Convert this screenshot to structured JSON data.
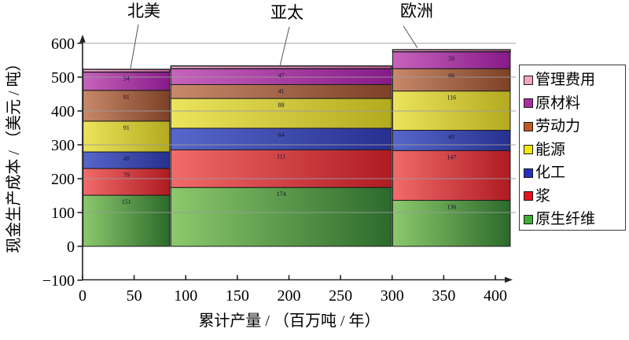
{
  "chart_data": {
    "type": "bar",
    "subtype": "variable-width-stacked-cost-curve",
    "title": "",
    "xlabel": "累计产量 / （百万吨 / 年）",
    "ylabel": "现金生产成本 / （美元 / 吨）",
    "xlim": [
      0,
      420
    ],
    "ylim": [
      -100,
      600
    ],
    "x_ticks": [
      0,
      50,
      100,
      150,
      200,
      250,
      300,
      350,
      400
    ],
    "y_ticks": [
      -100,
      0,
      100,
      200,
      300,
      400,
      500,
      600
    ],
    "grid": "horizontal-gray-over-bars",
    "legend_position": "right-outside",
    "categories": [
      "北美",
      "亚太",
      "欧洲"
    ],
    "bar_x_ranges": [
      [
        0,
        85
      ],
      [
        85,
        300
      ],
      [
        300,
        415
      ]
    ],
    "series": [
      {
        "name": "原生纤维",
        "values": [
          151,
          174,
          136
        ],
        "labeled": true,
        "color_light": "#8cc96c",
        "color_dark": "#2c6a2c",
        "swatch": "#3fad38"
      },
      {
        "name": "浆",
        "values": [
          79,
          111,
          147
        ],
        "labeled": true,
        "color_light": "#f26b6b",
        "color_dark": "#ae1b22",
        "swatch": "#e5121d"
      },
      {
        "name": "化工",
        "values": [
          49,
          64,
          60
        ],
        "labeled": true,
        "color_light": "#5767cb",
        "color_dark": "#27308f",
        "swatch": "#2531bd"
      },
      {
        "name": "能源",
        "values": [
          91,
          88,
          116
        ],
        "labeled": true,
        "color_light": "#ece45c",
        "color_dark": "#b3aa1f",
        "swatch": "#f0e900"
      },
      {
        "name": "劳动力",
        "values": [
          91,
          41,
          66
        ],
        "labeled": true,
        "color_light": "#c8896a",
        "color_dark": "#7c4127",
        "swatch": "#c05a24"
      },
      {
        "name": "原材料",
        "values": [
          54,
          47,
          50
        ],
        "labeled": true,
        "color_light": "#c763bc",
        "color_dark": "#871a89",
        "swatch": "#a92fa4"
      },
      {
        "name": "管理费用",
        "values": [
          8,
          8,
          6
        ],
        "labeled": false,
        "color_light": "#f3b3d4",
        "color_dark": "#c65f9e",
        "swatch": "#f2a3c5",
        "note": "top sliver unlabeled in source; heights estimated"
      }
    ],
    "legend": [
      "管理费用",
      "原材料",
      "劳动力",
      "能源",
      "化工",
      "浆",
      "原生纤维"
    ]
  }
}
